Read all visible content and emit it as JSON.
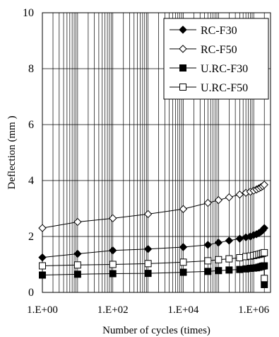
{
  "chart_data": {
    "type": "line",
    "title": "",
    "xlabel": "Number of cycles (times)",
    "ylabel": "Deflection  (mm )",
    "xscale": "log",
    "xlim": [
      1,
      3000000
    ],
    "ylim": [
      0,
      10
    ],
    "xticks": [
      1,
      100,
      10000,
      1000000
    ],
    "xtick_labels": [
      "1.E+00",
      "1.E+02",
      "1.E+04",
      "1.E+06"
    ],
    "yticks": [
      0,
      2,
      4,
      6,
      8,
      10
    ],
    "ytick_labels": [
      "0",
      "2",
      "4",
      "6",
      "8",
      "10"
    ],
    "grid": {
      "x_minor": true,
      "y_major": true
    },
    "legend_position": "top-right",
    "series": [
      {
        "name": "RC-F30",
        "marker": "diamond-filled",
        "x": [
          1,
          10,
          100,
          1000,
          10000,
          50000,
          100000,
          200000,
          400000,
          600000,
          800000,
          1000000,
          1200000,
          1400000,
          1600000,
          1800000,
          2000000
        ],
        "y": [
          1.25,
          1.38,
          1.5,
          1.55,
          1.62,
          1.7,
          1.78,
          1.85,
          1.92,
          1.97,
          2.0,
          2.05,
          2.08,
          2.12,
          2.17,
          2.22,
          2.3
        ]
      },
      {
        "name": "RC-F50",
        "marker": "diamond-open",
        "x": [
          1,
          10,
          100,
          1000,
          10000,
          50000,
          100000,
          200000,
          400000,
          600000,
          800000,
          1000000,
          1200000,
          1400000,
          1600000,
          1800000,
          2000000
        ],
        "y": [
          2.3,
          2.52,
          2.65,
          2.8,
          2.98,
          3.2,
          3.3,
          3.4,
          3.5,
          3.56,
          3.6,
          3.64,
          3.68,
          3.72,
          3.76,
          3.8,
          3.85
        ]
      },
      {
        "name": "U.RC-F30",
        "marker": "square-filled",
        "x": [
          1,
          10,
          100,
          1000,
          10000,
          50000,
          100000,
          200000,
          400000,
          600000,
          800000,
          1000000,
          1200000,
          1400000,
          1600000,
          1800000,
          2000000,
          2000000
        ],
        "y": [
          0.62,
          0.65,
          0.67,
          0.68,
          0.72,
          0.75,
          0.78,
          0.8,
          0.82,
          0.84,
          0.86,
          0.87,
          0.88,
          0.9,
          0.92,
          0.94,
          0.95,
          0.28
        ]
      },
      {
        "name": "U.RC-F50",
        "marker": "square-open",
        "x": [
          1,
          10,
          100,
          1000,
          10000,
          50000,
          100000,
          200000,
          400000,
          600000,
          800000,
          1000000,
          1200000,
          1400000,
          1600000,
          1800000,
          2000000,
          2000000
        ],
        "y": [
          0.95,
          0.98,
          1.0,
          1.03,
          1.08,
          1.13,
          1.17,
          1.2,
          1.24,
          1.28,
          1.3,
          1.32,
          1.34,
          1.36,
          1.38,
          1.4,
          1.42,
          0.5
        ]
      }
    ]
  }
}
